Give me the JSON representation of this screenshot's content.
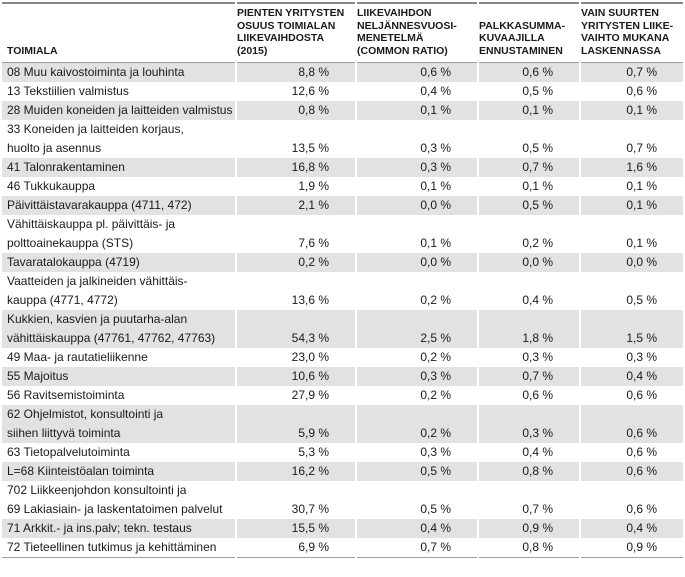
{
  "table": {
    "columns": [
      {
        "label": "TOIMIALA"
      },
      {
        "label": "PIENTEN YRITYSTEN\nOSUUS TOIMIALAN\nLIIKEVAIHDOSTA\n(2015)"
      },
      {
        "label": "LIIKEVAIHDON\nNELJÄNNESVUOSI-\nMENETELMÄ\n(COMMON RATIO)"
      },
      {
        "label": "PALKKASUMMA-\nKUVAAJILLA\nENNUSTAMINEN"
      },
      {
        "label": "VAIN SUURTEN\nYRITYSTEN LIIKE-\nVAIHTO MUKANA\nLASKENNASSA"
      }
    ],
    "rows": [
      {
        "toimiala": "08 Muu kaivostoiminta ja louhinta",
        "values": [
          "8,8 %",
          "0,6 %",
          "0,6 %",
          "0,7 %"
        ]
      },
      {
        "toimiala": "13 Tekstiilien valmistus",
        "values": [
          "12,6 %",
          "0,4 %",
          "0,5 %",
          "0,6 %"
        ]
      },
      {
        "toimiala": "28 Muiden koneiden ja laitteiden valmistus",
        "values": [
          "0,8 %",
          "0,1 %",
          "0,1 %",
          "0,1 %"
        ]
      },
      {
        "toimiala": "33 Koneiden ja laitteiden korjaus,\nhuolto ja asennus",
        "values": [
          "13,5 %",
          "0,3 %",
          "0,5 %",
          "0,7 %"
        ]
      },
      {
        "toimiala": "41 Talonrakentaminen",
        "values": [
          "16,8 %",
          "0,3 %",
          "0,7 %",
          "1,6 %"
        ]
      },
      {
        "toimiala": "46 Tukkukauppa",
        "values": [
          "1,9 %",
          "0,1 %",
          "0,1 %",
          "0,1 %"
        ]
      },
      {
        "toimiala": "Päivittäistavarakauppa (4711, 472)",
        "values": [
          "2,1 %",
          "0,0 %",
          "0,5 %",
          "0,1 %"
        ]
      },
      {
        "toimiala": "Vähittäiskauppa pl. päivittäis- ja\npolttoainekauppa (STS)",
        "values": [
          "7,6 %",
          "0,1 %",
          "0,2 %",
          "0,1 %"
        ]
      },
      {
        "toimiala": "Tavaratalokauppa (4719)",
        "values": [
          "0,2 %",
          "0,0 %",
          "0,0 %",
          "0,0 %"
        ]
      },
      {
        "toimiala": "Vaatteiden ja jalkineiden vähittäis-\nkauppa (4771, 4772)",
        "values": [
          "13,6 %",
          "0,2 %",
          "0,4 %",
          "0,5 %"
        ]
      },
      {
        "toimiala": "Kukkien, kasvien ja puutarha-alan\nvähittäiskauppa (47761, 47762, 47763)",
        "values": [
          "54,3 %",
          "2,5 %",
          "1,8 %",
          "1,5 %"
        ]
      },
      {
        "toimiala": "49 Maa- ja rautatieliikenne",
        "values": [
          "23,0 %",
          "0,2 %",
          "0,3 %",
          "0,3 %"
        ]
      },
      {
        "toimiala": "55 Majoitus",
        "values": [
          "10,6 %",
          "0,3 %",
          "0,7 %",
          "0,4 %"
        ]
      },
      {
        "toimiala": "56 Ravitsemistoiminta",
        "values": [
          "27,9 %",
          "0,2 %",
          "0,6 %",
          "0,6 %"
        ]
      },
      {
        "toimiala": "62 Ohjelmistot, konsultointi ja\nsiihen liittyvä toiminta",
        "values": [
          "5,9 %",
          "0,2 %",
          "0,3 %",
          "0,6 %"
        ]
      },
      {
        "toimiala": "63 Tietopalvelutoiminta",
        "values": [
          "5,3 %",
          "0,3 %",
          "0,4 %",
          "0,6 %"
        ]
      },
      {
        "toimiala": "L=68 Kiinteistöalan toiminta",
        "values": [
          "16,2 %",
          "0,5 %",
          "0,8 %",
          "0,6 %"
        ]
      },
      {
        "toimiala": "702 Liikkeenjohdon konsultointi ja\n69 Lakiasiain- ja laskentatoimen palvelut",
        "values": [
          "30,7 %",
          "0,5 %",
          "0,7 %",
          "0,6 %"
        ]
      },
      {
        "toimiala": "71 Arkkit.- ja ins.palv; tekn. testaus",
        "values": [
          "15,5 %",
          "0,4 %",
          "0,9 %",
          "0,4 %"
        ]
      },
      {
        "toimiala": "72 Tieteellinen tutkimus ja kehittäminen",
        "values": [
          "6,9 %",
          "0,7 %",
          "0,8 %",
          "0,9 %"
        ]
      }
    ]
  },
  "colors": {
    "row_shade": "#e2e2e2",
    "border_top": "#878787",
    "border_line": "#9f9f9f",
    "text": "#1a1a1a",
    "background": "#ffffff"
  }
}
